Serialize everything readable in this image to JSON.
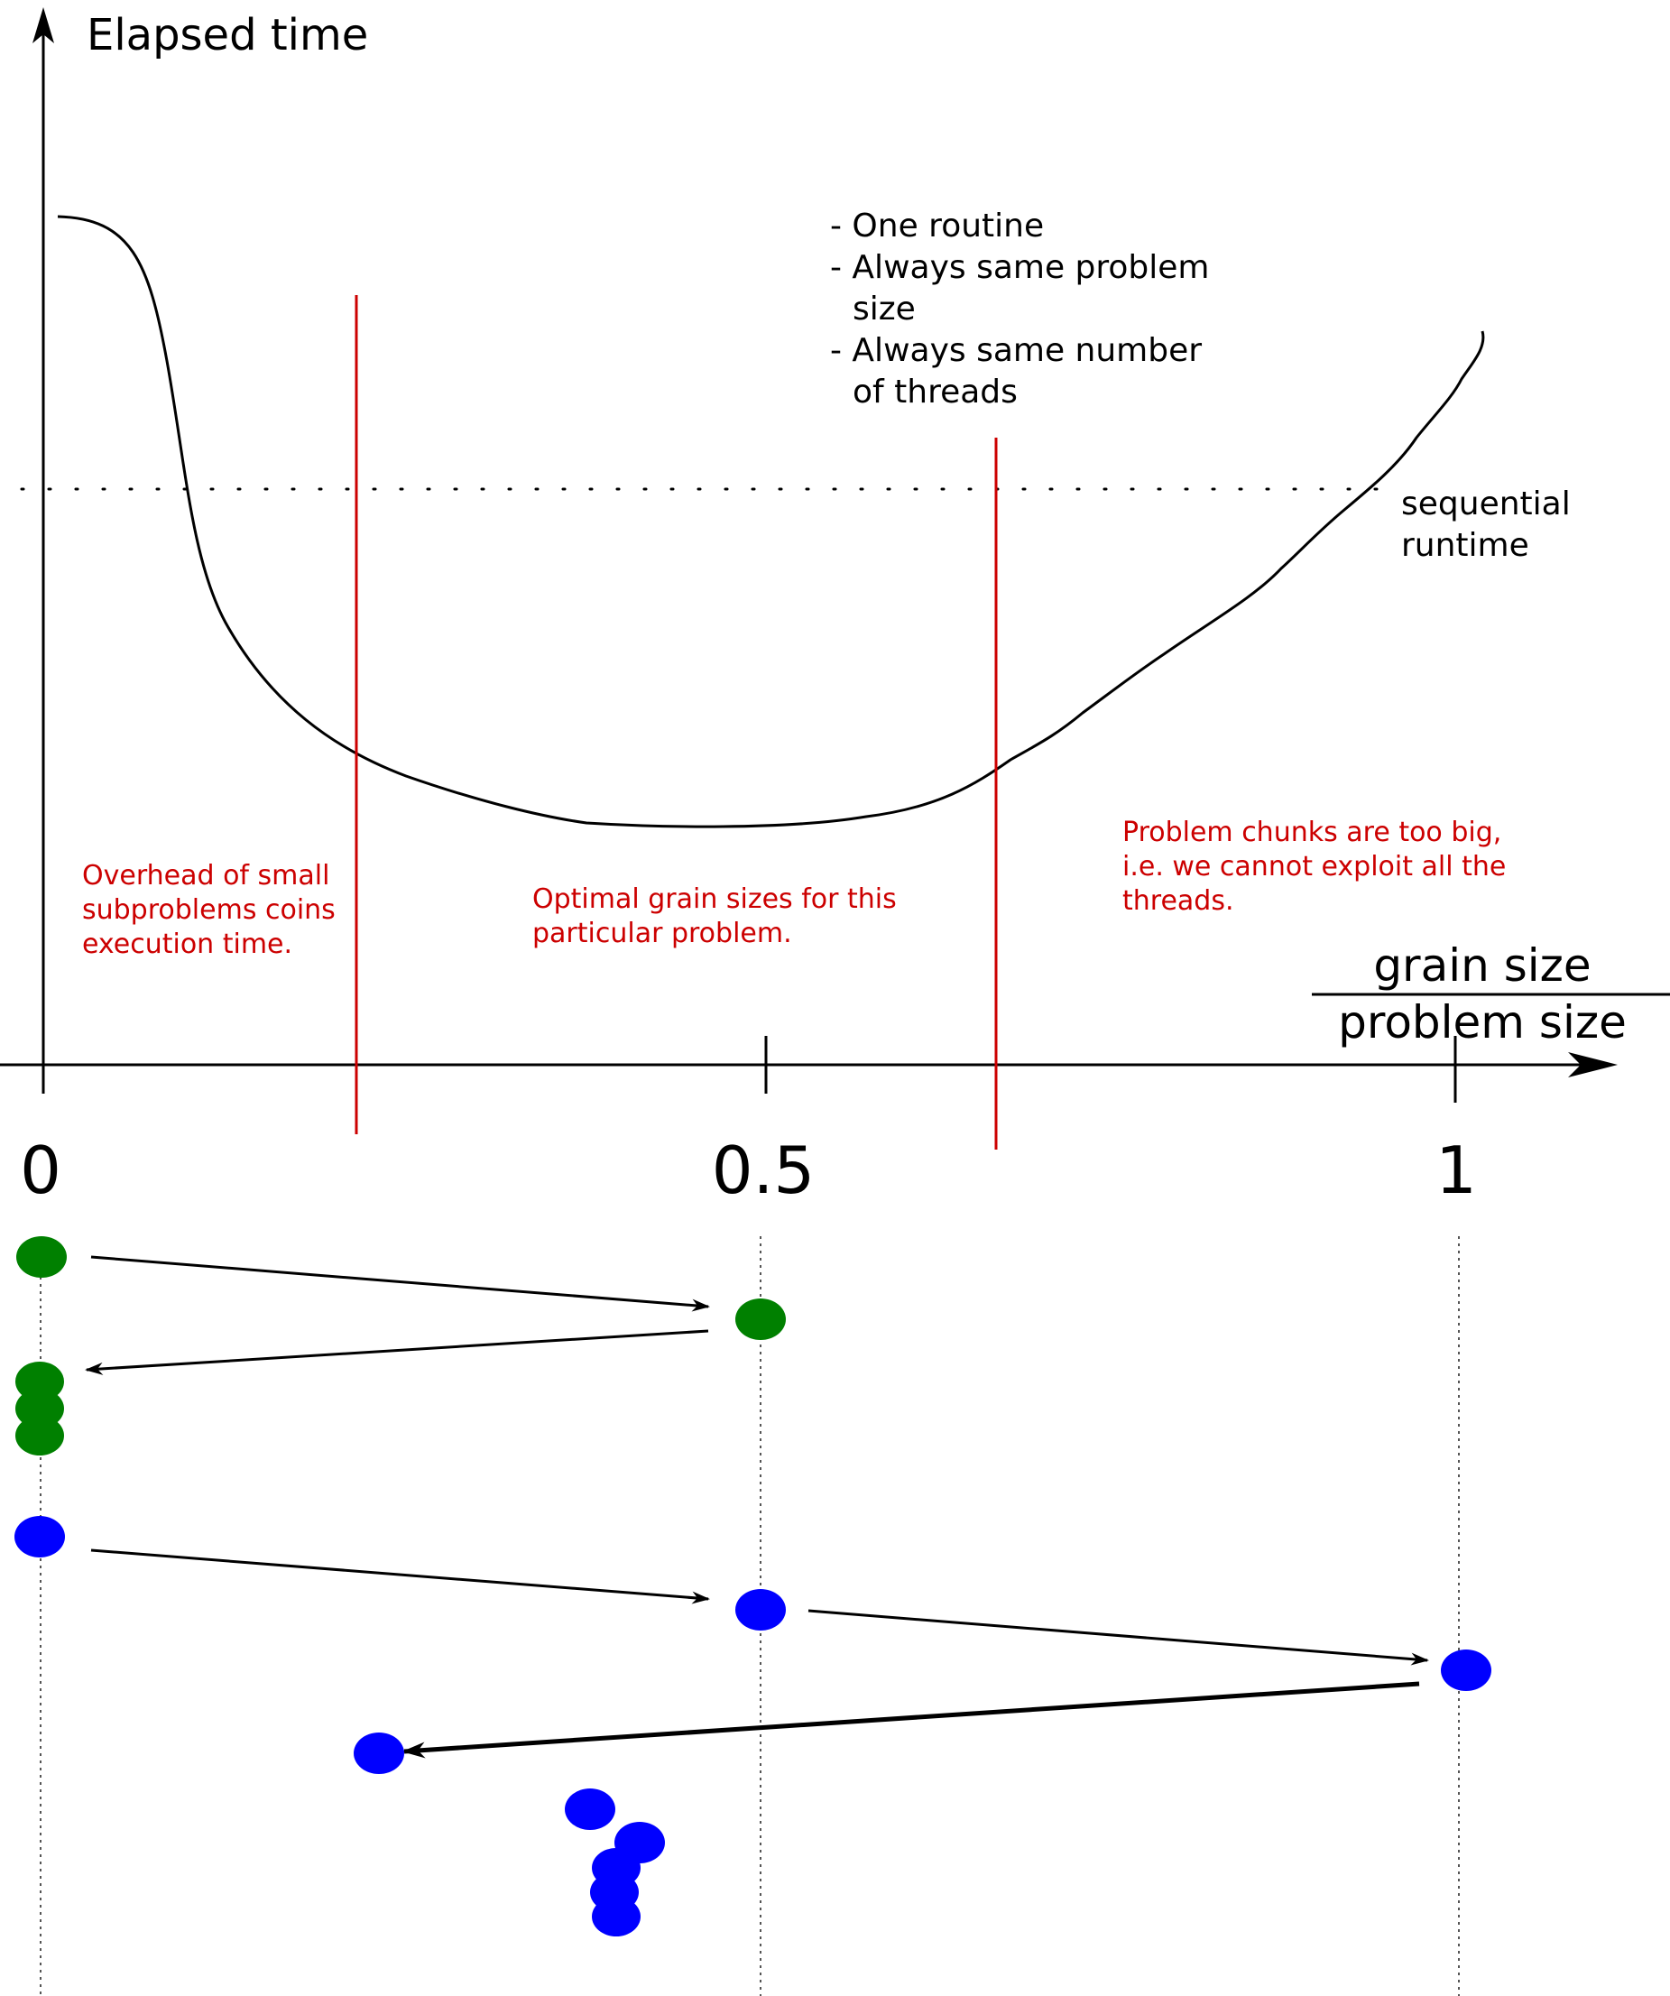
{
  "axes": {
    "y_label": "Elapsed time",
    "x_label_numerator": "grain size",
    "x_label_denominator": "problem size",
    "x_ticks": [
      "0",
      "0.5",
      "1"
    ]
  },
  "notes": {
    "lines": [
      "- One routine",
      "- Always same problem",
      "size",
      "- Always same number",
      "of threads"
    ]
  },
  "sequential": {
    "lines": [
      "sequential",
      "runtime"
    ]
  },
  "regions": {
    "left": [
      "Overhead of small",
      "subproblems coins",
      "execution time."
    ],
    "middle": [
      "Optimal grain sizes for this",
      "particular problem."
    ],
    "right": [
      "Problem chunks are too big,",
      "i.e. we cannot exploit all the",
      "threads."
    ]
  },
  "colors": {
    "axis": "#000000",
    "boundary": "#cc0000",
    "region_text": "#cc0000",
    "green_dot": "#008000",
    "blue_dot": "#0000ff"
  }
}
